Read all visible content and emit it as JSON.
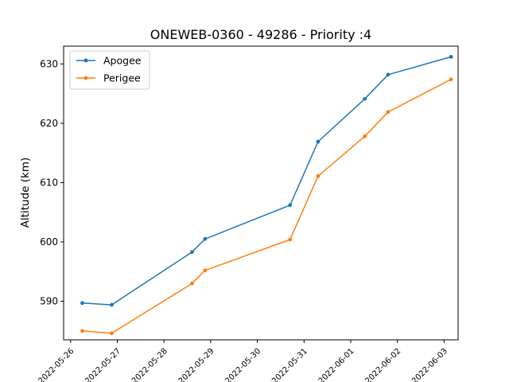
{
  "chart_data": {
    "type": "line",
    "title": "ONEWEB-0360 - 49286 - Priority :4",
    "xlabel": "",
    "ylabel": "Altitude (km)",
    "x_ticks": [
      "2022-05-26",
      "2022-05-27",
      "2022-05-28",
      "2022-05-29",
      "2022-05-30",
      "2022-05-31",
      "2022-06-01",
      "2022-06-02",
      "2022-06-03"
    ],
    "y_ticks": [
      590,
      600,
      610,
      620,
      630
    ],
    "xlim": [
      "2022-05-25 20:24",
      "2022-06-03 07:12"
    ],
    "ylim": [
      583.5,
      633
    ],
    "grid": false,
    "legend_position": "top-left",
    "series": [
      {
        "name": "Apogee",
        "color": "#1f77b4",
        "x": [
          "2022-05-26 06:00",
          "2022-05-26 21:07",
          "2022-05-28 14:24",
          "2022-05-28 21:07",
          "2022-05-30 16:48",
          "2022-05-31 07:12",
          "2022-06-01 07:12",
          "2022-06-01 19:12",
          "2022-06-03 03:36"
        ],
        "y": [
          589.7,
          589.4,
          598.3,
          600.5,
          606.2,
          616.9,
          624.1,
          628.2,
          631.2
        ]
      },
      {
        "name": "Perigee",
        "color": "#ff7f0e",
        "x": [
          "2022-05-26 06:00",
          "2022-05-26 21:07",
          "2022-05-28 14:24",
          "2022-05-28 21:07",
          "2022-05-30 16:48",
          "2022-05-31 07:12",
          "2022-06-01 07:12",
          "2022-06-01 19:12",
          "2022-06-03 03:36"
        ],
        "y": [
          585.0,
          584.6,
          593.0,
          595.2,
          600.4,
          611.1,
          617.8,
          621.9,
          627.4
        ]
      }
    ]
  }
}
